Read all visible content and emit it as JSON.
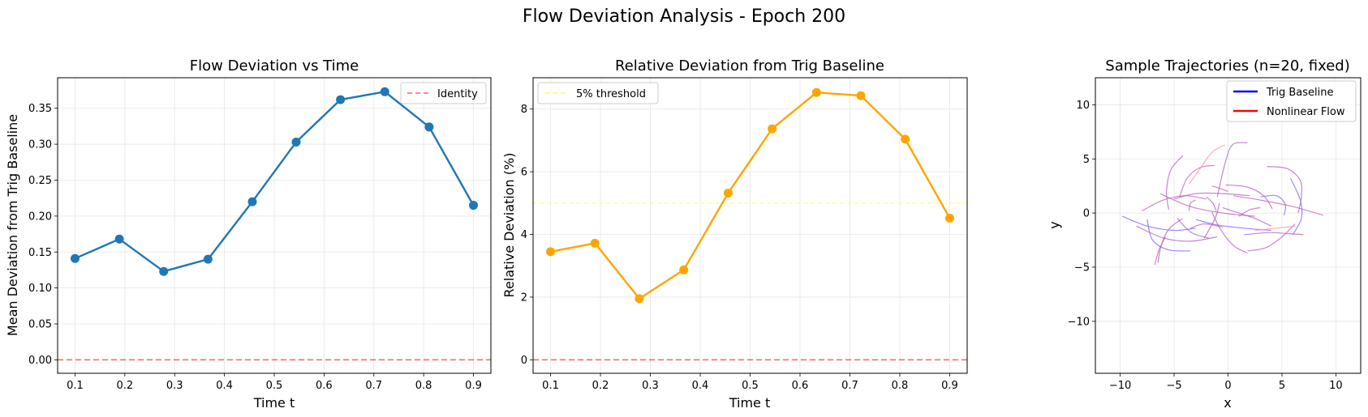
{
  "figure": {
    "title": "Flow Deviation Analysis - Epoch 200"
  },
  "chart_data": [
    {
      "type": "line",
      "title": "Flow Deviation vs Time",
      "xlabel": "Time t",
      "ylabel": "Mean Deviation from Trig Baseline",
      "xlim": [
        0.065,
        0.935
      ],
      "ylim": [
        -0.0187,
        0.3925
      ],
      "xticks": [
        0.1,
        0.2,
        0.3,
        0.4,
        0.5,
        0.6,
        0.7,
        0.8,
        0.9
      ],
      "yticks": [
        0.0,
        0.05,
        0.1,
        0.15,
        0.2,
        0.25,
        0.3,
        0.35
      ],
      "xtick_labels": [
        "0.1",
        "0.2",
        "0.3",
        "0.4",
        "0.5",
        "0.6",
        "0.7",
        "0.8",
        "0.9"
      ],
      "ytick_labels": [
        "0.00",
        "0.05",
        "0.10",
        "0.15",
        "0.20",
        "0.25",
        "0.30",
        "0.35"
      ],
      "grid": true,
      "legend_position": "upper-right",
      "series": [
        {
          "color": "#1f77b4",
          "marker": "circle",
          "x": [
            0.1,
            0.189,
            0.278,
            0.367,
            0.456,
            0.544,
            0.633,
            0.722,
            0.811,
            0.9
          ],
          "y": [
            0.141,
            0.168,
            0.123,
            0.14,
            0.22,
            0.303,
            0.362,
            0.373,
            0.324,
            0.215
          ]
        }
      ],
      "reference_lines": [
        {
          "name": "Identity",
          "y": 0.0,
          "color": "#ff0000",
          "style": "dashed"
        }
      ]
    },
    {
      "type": "line",
      "title": "Relative Deviation from Trig Baseline",
      "xlabel": "Time t",
      "ylabel": "Relative Deviation (%)",
      "xlim": [
        0.065,
        0.935
      ],
      "ylim": [
        -0.43,
        9.0
      ],
      "xticks": [
        0.1,
        0.2,
        0.3,
        0.4,
        0.5,
        0.6,
        0.7,
        0.8,
        0.9
      ],
      "yticks": [
        0,
        2,
        4,
        6,
        8
      ],
      "xtick_labels": [
        "0.1",
        "0.2",
        "0.3",
        "0.4",
        "0.5",
        "0.6",
        "0.7",
        "0.8",
        "0.9"
      ],
      "ytick_labels": [
        "0",
        "2",
        "4",
        "6",
        "8"
      ],
      "grid": true,
      "legend_position": "upper-left",
      "series": [
        {
          "color": "#ffa500",
          "marker": "circle",
          "x": [
            0.1,
            0.189,
            0.278,
            0.367,
            0.456,
            0.544,
            0.633,
            0.722,
            0.811,
            0.9
          ],
          "y": [
            3.45,
            3.72,
            1.95,
            2.87,
            5.32,
            7.37,
            8.53,
            8.43,
            7.04,
            4.52
          ]
        }
      ],
      "reference_lines": [
        {
          "name": "5% threshold",
          "y": 5.0,
          "color": "#ffff55",
          "style": "dashed",
          "in_legend": true
        },
        {
          "name": "",
          "y": 0.0,
          "color": "#ff0000",
          "style": "dashed",
          "in_legend": false
        }
      ]
    },
    {
      "type": "line",
      "title": "Sample Trajectories (n=20, fixed)",
      "xlabel": "x",
      "ylabel": "y",
      "xlim": [
        -12.3,
        12.3
      ],
      "ylim": [
        -14.8,
        12.5
      ],
      "xticks": [
        -10,
        -5,
        0,
        5,
        10
      ],
      "yticks": [
        -10,
        -5,
        0,
        5,
        10
      ],
      "xtick_labels": [
        "−10",
        "−5",
        "0",
        "5",
        "10"
      ],
      "ytick_labels": [
        "−10",
        "−5",
        "0",
        "5",
        "10"
      ],
      "grid": true,
      "legend_position": "upper-right",
      "legend": [
        {
          "name": "Trig Baseline",
          "color": "#0000ff"
        },
        {
          "name": "Nonlinear Flow",
          "color": "#ff0000"
        }
      ],
      "series": [
        {
          "color": "#7b61ff",
          "points": [
            [
              -9.8,
              -0.3
            ],
            [
              -7.5,
              -1.2
            ],
            [
              -5,
              -1.6
            ],
            [
              -3,
              -1.4
            ]
          ]
        },
        {
          "color": "#b05fc0",
          "points": [
            [
              -8.5,
              -1.2
            ],
            [
              -6,
              -2.3
            ],
            [
              -3.5,
              -2.6
            ],
            [
              -1,
              -2.2
            ]
          ]
        },
        {
          "color": "#c060b8",
          "points": [
            [
              -8,
              0.2
            ],
            [
              -6,
              1.2
            ],
            [
              -4,
              1.6
            ],
            [
              -2,
              1.3
            ]
          ]
        },
        {
          "color": "#7b61ff",
          "points": [
            [
              -7.5,
              -0.6
            ],
            [
              -7,
              -2.5
            ],
            [
              -5.5,
              -3.4
            ],
            [
              -3.5,
              -3.5
            ]
          ]
        },
        {
          "color": "#b05fc0",
          "points": [
            [
              -6.5,
              -4.6
            ],
            [
              -6.2,
              -3
            ],
            [
              -5.5,
              -1.5
            ],
            [
              -4.2,
              -0.5
            ]
          ]
        },
        {
          "color": "#c060b8",
          "points": [
            [
              -6.8,
              -4.8
            ],
            [
              -6.4,
              -3.4
            ],
            [
              -5.8,
              -2.2
            ]
          ]
        },
        {
          "color": "#b05fc0",
          "points": [
            [
              -5.5,
              0.3
            ],
            [
              -5.7,
              2
            ],
            [
              -5.3,
              4
            ],
            [
              -4.2,
              5.3
            ]
          ]
        },
        {
          "color": "#c060b8",
          "points": [
            [
              -4.5,
              1.5
            ],
            [
              -3.8,
              3.2
            ],
            [
              -2.6,
              4.2
            ],
            [
              -1.2,
              4.4
            ]
          ]
        },
        {
          "color": "#ff8fa0",
          "points": [
            [
              -3.6,
              2.7
            ],
            [
              -2.8,
              3.8
            ],
            [
              -1.5,
              5.6
            ],
            [
              -0.3,
              6.3
            ]
          ]
        },
        {
          "color": "#b05fc0",
          "points": [
            [
              -1,
              1.5
            ],
            [
              -0.3,
              4.5
            ],
            [
              0.4,
              6.3
            ],
            [
              1.8,
              6.5
            ]
          ]
        },
        {
          "color": "#b05fc0",
          "points": [
            [
              -5,
              1.3
            ],
            [
              -3,
              1.8
            ],
            [
              -0.5,
              1.8
            ],
            [
              2,
              1.6
            ]
          ]
        },
        {
          "color": "#c060b8",
          "points": [
            [
              -6.3,
              1.8
            ],
            [
              -3.5,
              0.6
            ],
            [
              -0.5,
              0
            ],
            [
              2.5,
              -0.3
            ]
          ]
        },
        {
          "color": "#7b61ff",
          "points": [
            [
              -3,
              -0.6
            ],
            [
              -1,
              -1.1
            ],
            [
              1.5,
              -1.4
            ],
            [
              4,
              -1.6
            ]
          ]
        },
        {
          "color": "#b05fc0",
          "points": [
            [
              -1.5,
              0.1
            ],
            [
              -0.7,
              -1.5
            ],
            [
              0.5,
              -3
            ],
            [
              1.8,
              -3.7
            ]
          ]
        },
        {
          "color": "#c060b8",
          "points": [
            [
              1.8,
              -3.5
            ],
            [
              3.5,
              -3.2
            ],
            [
              5,
              -2.2
            ],
            [
              6.2,
              -1
            ]
          ]
        },
        {
          "color": "#b05fc0",
          "points": [
            [
              -2.2,
              -2.3
            ],
            [
              -1.2,
              -0.5
            ],
            [
              -0.8,
              0.9
            ]
          ]
        },
        {
          "color": "#c060b8",
          "points": [
            [
              -3.5,
              -1.4
            ],
            [
              -2.2,
              -1
            ],
            [
              -0.5,
              -1.3
            ]
          ]
        },
        {
          "color": "#b05fc0",
          "points": [
            [
              -0.5,
              0.5
            ],
            [
              1,
              0
            ],
            [
              2.5,
              -0.5
            ],
            [
              4,
              -1.2
            ]
          ]
        },
        {
          "color": "#c060b8",
          "points": [
            [
              -1.5,
              2.5
            ],
            [
              -0.8,
              2.3
            ],
            [
              0,
              2
            ]
          ]
        },
        {
          "color": "#b05fc0",
          "points": [
            [
              -3,
              1.2
            ],
            [
              -3.5,
              0.9
            ],
            [
              -3.6,
              0.2
            ]
          ]
        },
        {
          "color": "#7b61ff",
          "points": [
            [
              3,
              1.5
            ],
            [
              4.5,
              1.6
            ],
            [
              5.3,
              0.8
            ],
            [
              5.2,
              -0.2
            ]
          ]
        },
        {
          "color": "#b05fc0",
          "points": [
            [
              -0.2,
              2.6
            ],
            [
              1.8,
              2.4
            ],
            [
              3.3,
              1.6
            ],
            [
              4.1,
              0.4
            ]
          ]
        },
        {
          "color": "#b05fc0",
          "points": [
            [
              3.6,
              4.3
            ],
            [
              5.5,
              4.1
            ],
            [
              6.7,
              3
            ],
            [
              6.8,
              1.5
            ],
            [
              6.5,
              0
            ]
          ]
        },
        {
          "color": "#c060b8",
          "points": [
            [
              0.5,
              1.6
            ],
            [
              3,
              1.2
            ],
            [
              6,
              0.6
            ],
            [
              8.8,
              -0.2
            ]
          ]
        },
        {
          "color": "#7b61ff",
          "points": [
            [
              5.8,
              3.2
            ],
            [
              6.7,
              1.2
            ],
            [
              6.8,
              -0.5
            ],
            [
              6,
              -2
            ]
          ]
        },
        {
          "color": "#b05fc0",
          "points": [
            [
              1.5,
              -2
            ],
            [
              3.8,
              -1.8
            ],
            [
              5.5,
              -1.9
            ],
            [
              7,
              -2
            ]
          ]
        },
        {
          "color": "#ff8fa0",
          "points": [
            [
              2.5,
              -1.6
            ],
            [
              4.5,
              -1.4
            ],
            [
              6.2,
              -1.2
            ]
          ]
        },
        {
          "color": "#b05fc0",
          "points": [
            [
              -2,
              1.5
            ],
            [
              -1.4,
              0.9
            ],
            [
              -1.1,
              0.2
            ]
          ]
        },
        {
          "color": "#c060b8",
          "points": [
            [
              1,
              -0.3
            ],
            [
              2,
              0.3
            ],
            [
              3,
              0.5
            ]
          ]
        },
        {
          "color": "#b05fc0",
          "points": [
            [
              -4.7,
              -0.5
            ],
            [
              -3.4,
              -1.8
            ],
            [
              -1.8,
              -2.3
            ]
          ]
        }
      ]
    }
  ]
}
